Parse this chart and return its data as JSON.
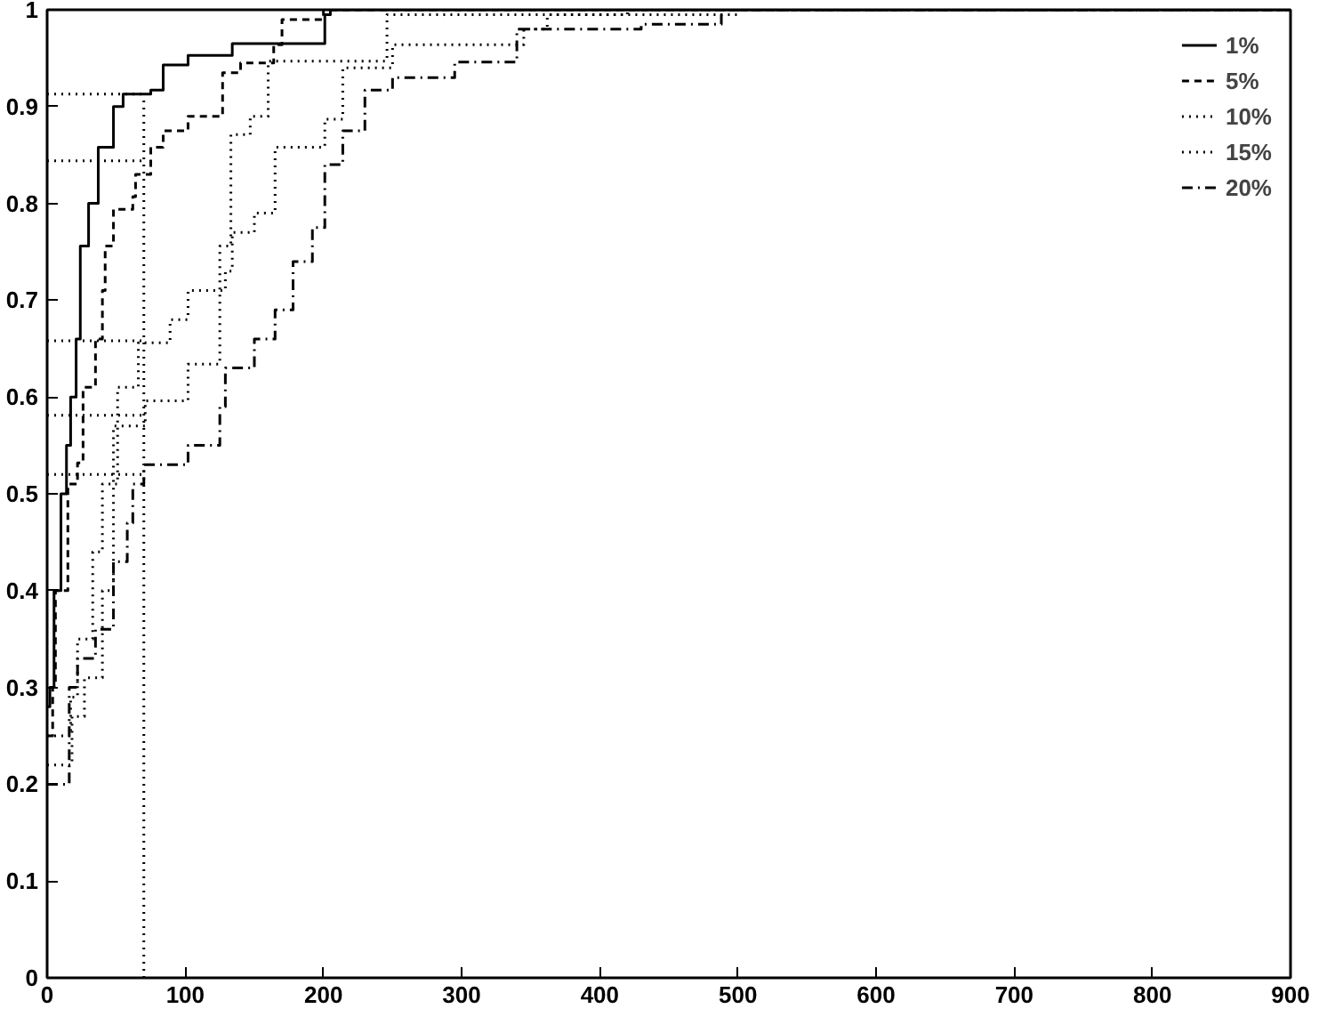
{
  "chart_data": {
    "type": "step",
    "xlim": [
      0,
      900
    ],
    "ylim": [
      0,
      1
    ],
    "xticks": [
      0,
      100,
      200,
      300,
      400,
      500,
      600,
      700,
      800,
      900
    ],
    "yticks": [
      0,
      0.1,
      0.2,
      0.3,
      0.4,
      0.5,
      0.6,
      0.7,
      0.8,
      0.9,
      1
    ],
    "grid": false,
    "legend": "top right",
    "series": [
      {
        "name": "1%",
        "color": "#000000",
        "line_style": "solid",
        "x": [
          0,
          2,
          5,
          10,
          14,
          17,
          21,
          24,
          30,
          37,
          48,
          55,
          75,
          84,
          102,
          134,
          187,
          201,
          205,
          900
        ],
        "values": [
          0.28,
          0.3,
          0.4,
          0.5,
          0.55,
          0.6,
          0.66,
          0.756,
          0.8,
          0.858,
          0.9,
          0.913,
          0.917,
          0.943,
          0.953,
          0.965,
          0.965,
          0.995,
          1,
          1
        ]
      },
      {
        "name": "5%",
        "color": "#000000",
        "line_style": "dashed",
        "x": [
          0,
          4,
          6,
          15,
          22,
          26,
          35,
          40,
          42,
          48,
          62,
          64,
          75,
          84,
          102,
          127,
          140,
          164,
          170,
          200,
          900
        ],
        "values": [
          0.25,
          0.3,
          0.4,
          0.51,
          0.532,
          0.61,
          0.66,
          0.71,
          0.756,
          0.794,
          0.807,
          0.83,
          0.858,
          0.875,
          0.89,
          0.935,
          0.945,
          0.964,
          0.99,
          1,
          1
        ]
      },
      {
        "name": "10%",
        "color": "#000000",
        "line_style": "dotted",
        "x": [
          0,
          17,
          22,
          33,
          40,
          48,
          71,
          102,
          125,
          133,
          147,
          160,
          246,
          500,
          900
        ],
        "values": [
          0.25,
          0.29,
          0.35,
          0.44,
          0.51,
          0.57,
          0.596,
          0.634,
          0.756,
          0.871,
          0.89,
          0.947,
          0.995,
          1,
          1
        ]
      },
      {
        "name": "15%",
        "color": "#000000",
        "line_style": "dotted",
        "x": [
          0,
          18,
          27,
          40,
          48,
          51,
          66,
          89,
          102,
          129,
          134,
          150,
          165,
          201,
          214,
          250,
          345,
          362,
          420,
          900
        ],
        "values": [
          0.22,
          0.27,
          0.31,
          0.4,
          0.51,
          0.61,
          0.656,
          0.68,
          0.71,
          0.73,
          0.77,
          0.79,
          0.858,
          0.887,
          0.94,
          0.964,
          0.98,
          0.995,
          1,
          1
        ]
      },
      {
        "name": "20%",
        "color": "#000000",
        "line_style": "dashdot",
        "x": [
          0,
          16,
          22,
          35,
          48,
          58,
          62,
          70,
          102,
          125,
          129,
          150,
          165,
          178,
          192,
          201,
          214,
          230,
          250,
          295,
          340,
          430,
          488,
          490,
          900
        ],
        "values": [
          0.2,
          0.3,
          0.33,
          0.36,
          0.43,
          0.47,
          0.51,
          0.53,
          0.55,
          0.59,
          0.63,
          0.66,
          0.69,
          0.74,
          0.775,
          0.84,
          0.875,
          0.917,
          0.93,
          0.946,
          0.98,
          0.985,
          0.995,
          1,
          1
        ]
      },
      {
        "type": "line",
        "color": "#000000",
        "line_style": "dotted",
        "x": [
          70,
          70
        ],
        "values": [
          0,
          0.913
        ]
      },
      {
        "type": "line",
        "color": "#000000",
        "line_style": "dotted",
        "x": [
          0,
          70
        ],
        "values": [
          0.913,
          0.913
        ]
      },
      {
        "type": "line",
        "color": "#000000",
        "line_style": "dotted",
        "x": [
          0,
          70
        ],
        "values": [
          0.844,
          0.844
        ]
      },
      {
        "type": "line",
        "color": "#000000",
        "line_style": "dotted",
        "x": [
          0,
          70
        ],
        "values": [
          0.658,
          0.658
        ]
      },
      {
        "type": "line",
        "color": "#000000",
        "line_style": "dotted",
        "x": [
          0,
          70
        ],
        "values": [
          0.581,
          0.581
        ]
      },
      {
        "type": "line",
        "color": "#000000",
        "line_style": "dotted",
        "x": [
          0,
          70
        ],
        "values": [
          0.52,
          0.52
        ]
      }
    ]
  }
}
